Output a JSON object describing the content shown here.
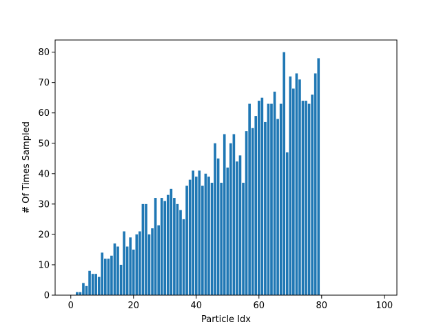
{
  "chart_data": {
    "type": "bar",
    "xlabel": "Particle Idx",
    "ylabel": "# Of Times Sampled",
    "xlim": [
      -5,
      104
    ],
    "ylim": [
      0,
      84
    ],
    "x_ticks": [
      0,
      20,
      40,
      60,
      80,
      100
    ],
    "y_ticks": [
      0,
      10,
      20,
      30,
      40,
      50,
      60,
      70,
      80
    ],
    "grid": false,
    "bar_color": "#1f77b4",
    "x": [
      0,
      1,
      2,
      3,
      4,
      5,
      6,
      7,
      8,
      9,
      10,
      11,
      12,
      13,
      14,
      15,
      16,
      17,
      18,
      19,
      20,
      21,
      22,
      23,
      24,
      25,
      26,
      27,
      28,
      29,
      30,
      31,
      32,
      33,
      34,
      35,
      36,
      37,
      38,
      39,
      40,
      41,
      42,
      43,
      44,
      45,
      46,
      47,
      48,
      49,
      50,
      51,
      52,
      53,
      54,
      55,
      56,
      57,
      58,
      59,
      60,
      61,
      62,
      63,
      64,
      65,
      66,
      67,
      68,
      69,
      70,
      71,
      72,
      73,
      74,
      75,
      76,
      77,
      78,
      79
    ],
    "values": [
      0,
      0,
      1,
      1,
      4,
      3,
      8,
      7,
      7,
      6,
      14,
      12,
      12,
      13,
      17,
      16,
      10,
      21,
      16,
      19,
      15,
      20,
      21,
      30,
      30,
      20,
      22,
      32,
      23,
      32,
      31,
      33,
      35,
      32,
      30,
      28,
      25,
      36,
      38,
      41,
      39,
      41,
      36,
      40,
      39,
      37,
      50,
      45,
      37,
      53,
      42,
      50,
      53,
      44,
      46,
      37,
      54,
      63,
      55,
      59,
      64,
      65,
      57,
      63,
      63,
      67,
      58,
      63,
      80,
      47,
      72,
      68,
      73,
      71,
      64,
      64,
      63,
      66,
      73,
      78
    ]
  }
}
